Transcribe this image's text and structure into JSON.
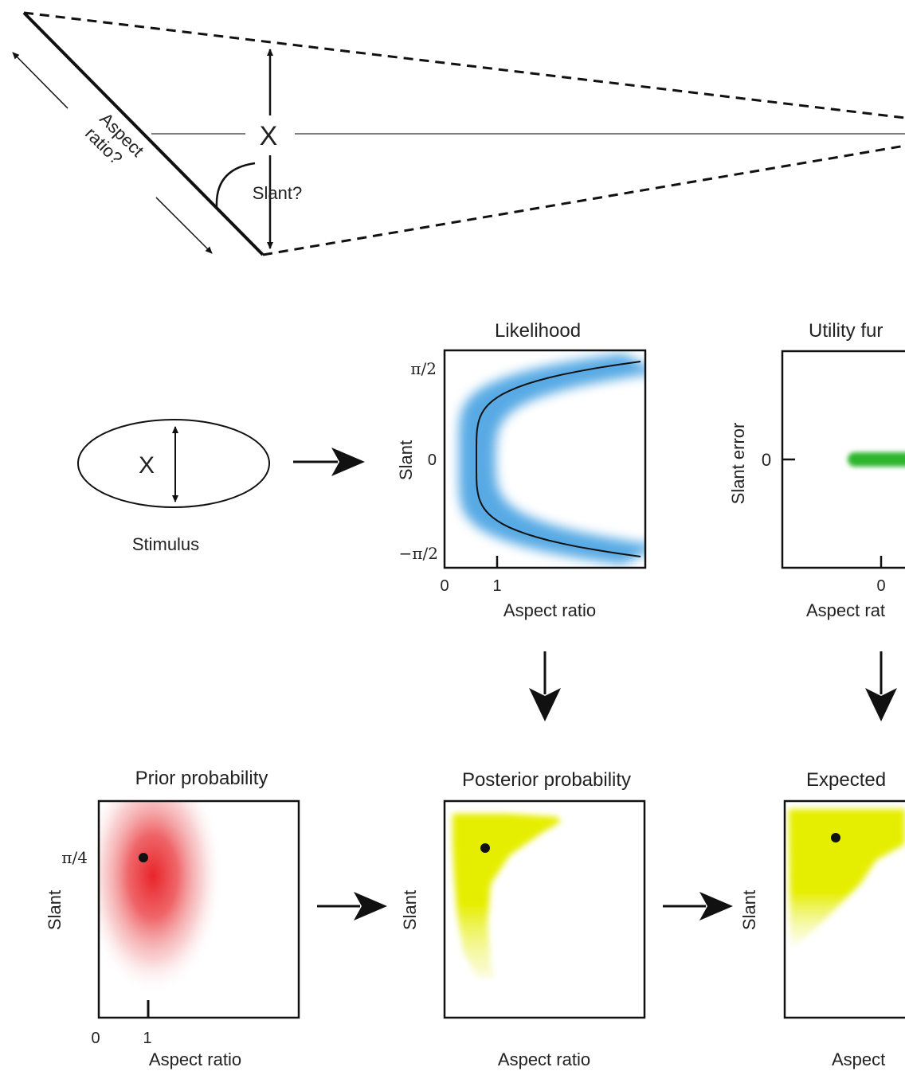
{
  "top": {
    "aspect_label_line1": "Aspect",
    "aspect_label_line2": "ratio?",
    "slant_label": "Slant?",
    "x_marker": "X"
  },
  "stimulus": {
    "x_marker": "X",
    "caption": "Stimulus"
  },
  "likelihood": {
    "title": "Likelihood",
    "ylabel": "Slant",
    "xlabel": "Aspect ratio",
    "yticks": [
      "π/2",
      "0",
      "−π/2"
    ],
    "xticks": [
      "0",
      "1"
    ],
    "color": "#3a9be0"
  },
  "utility": {
    "title": "Utility fur",
    "ylabel": "Slant error",
    "xlabel": "Aspect rat",
    "ytick": "0",
    "xtick": "0",
    "color": "#2fb52f"
  },
  "prior": {
    "title": "Prior probability",
    "ylabel": "Slant",
    "xlabel": "Aspect ratio",
    "ytick": "π/4",
    "xticks": [
      "0",
      "1"
    ],
    "color": "#e8242a"
  },
  "posterior": {
    "title": "Posterior probability",
    "ylabel": "Slant",
    "xlabel": "Aspect ratio",
    "color": "#e6ee00"
  },
  "expected": {
    "title": "Expected",
    "ylabel": "Slant",
    "xlabel": "Aspect",
    "color": "#e6ee00"
  }
}
